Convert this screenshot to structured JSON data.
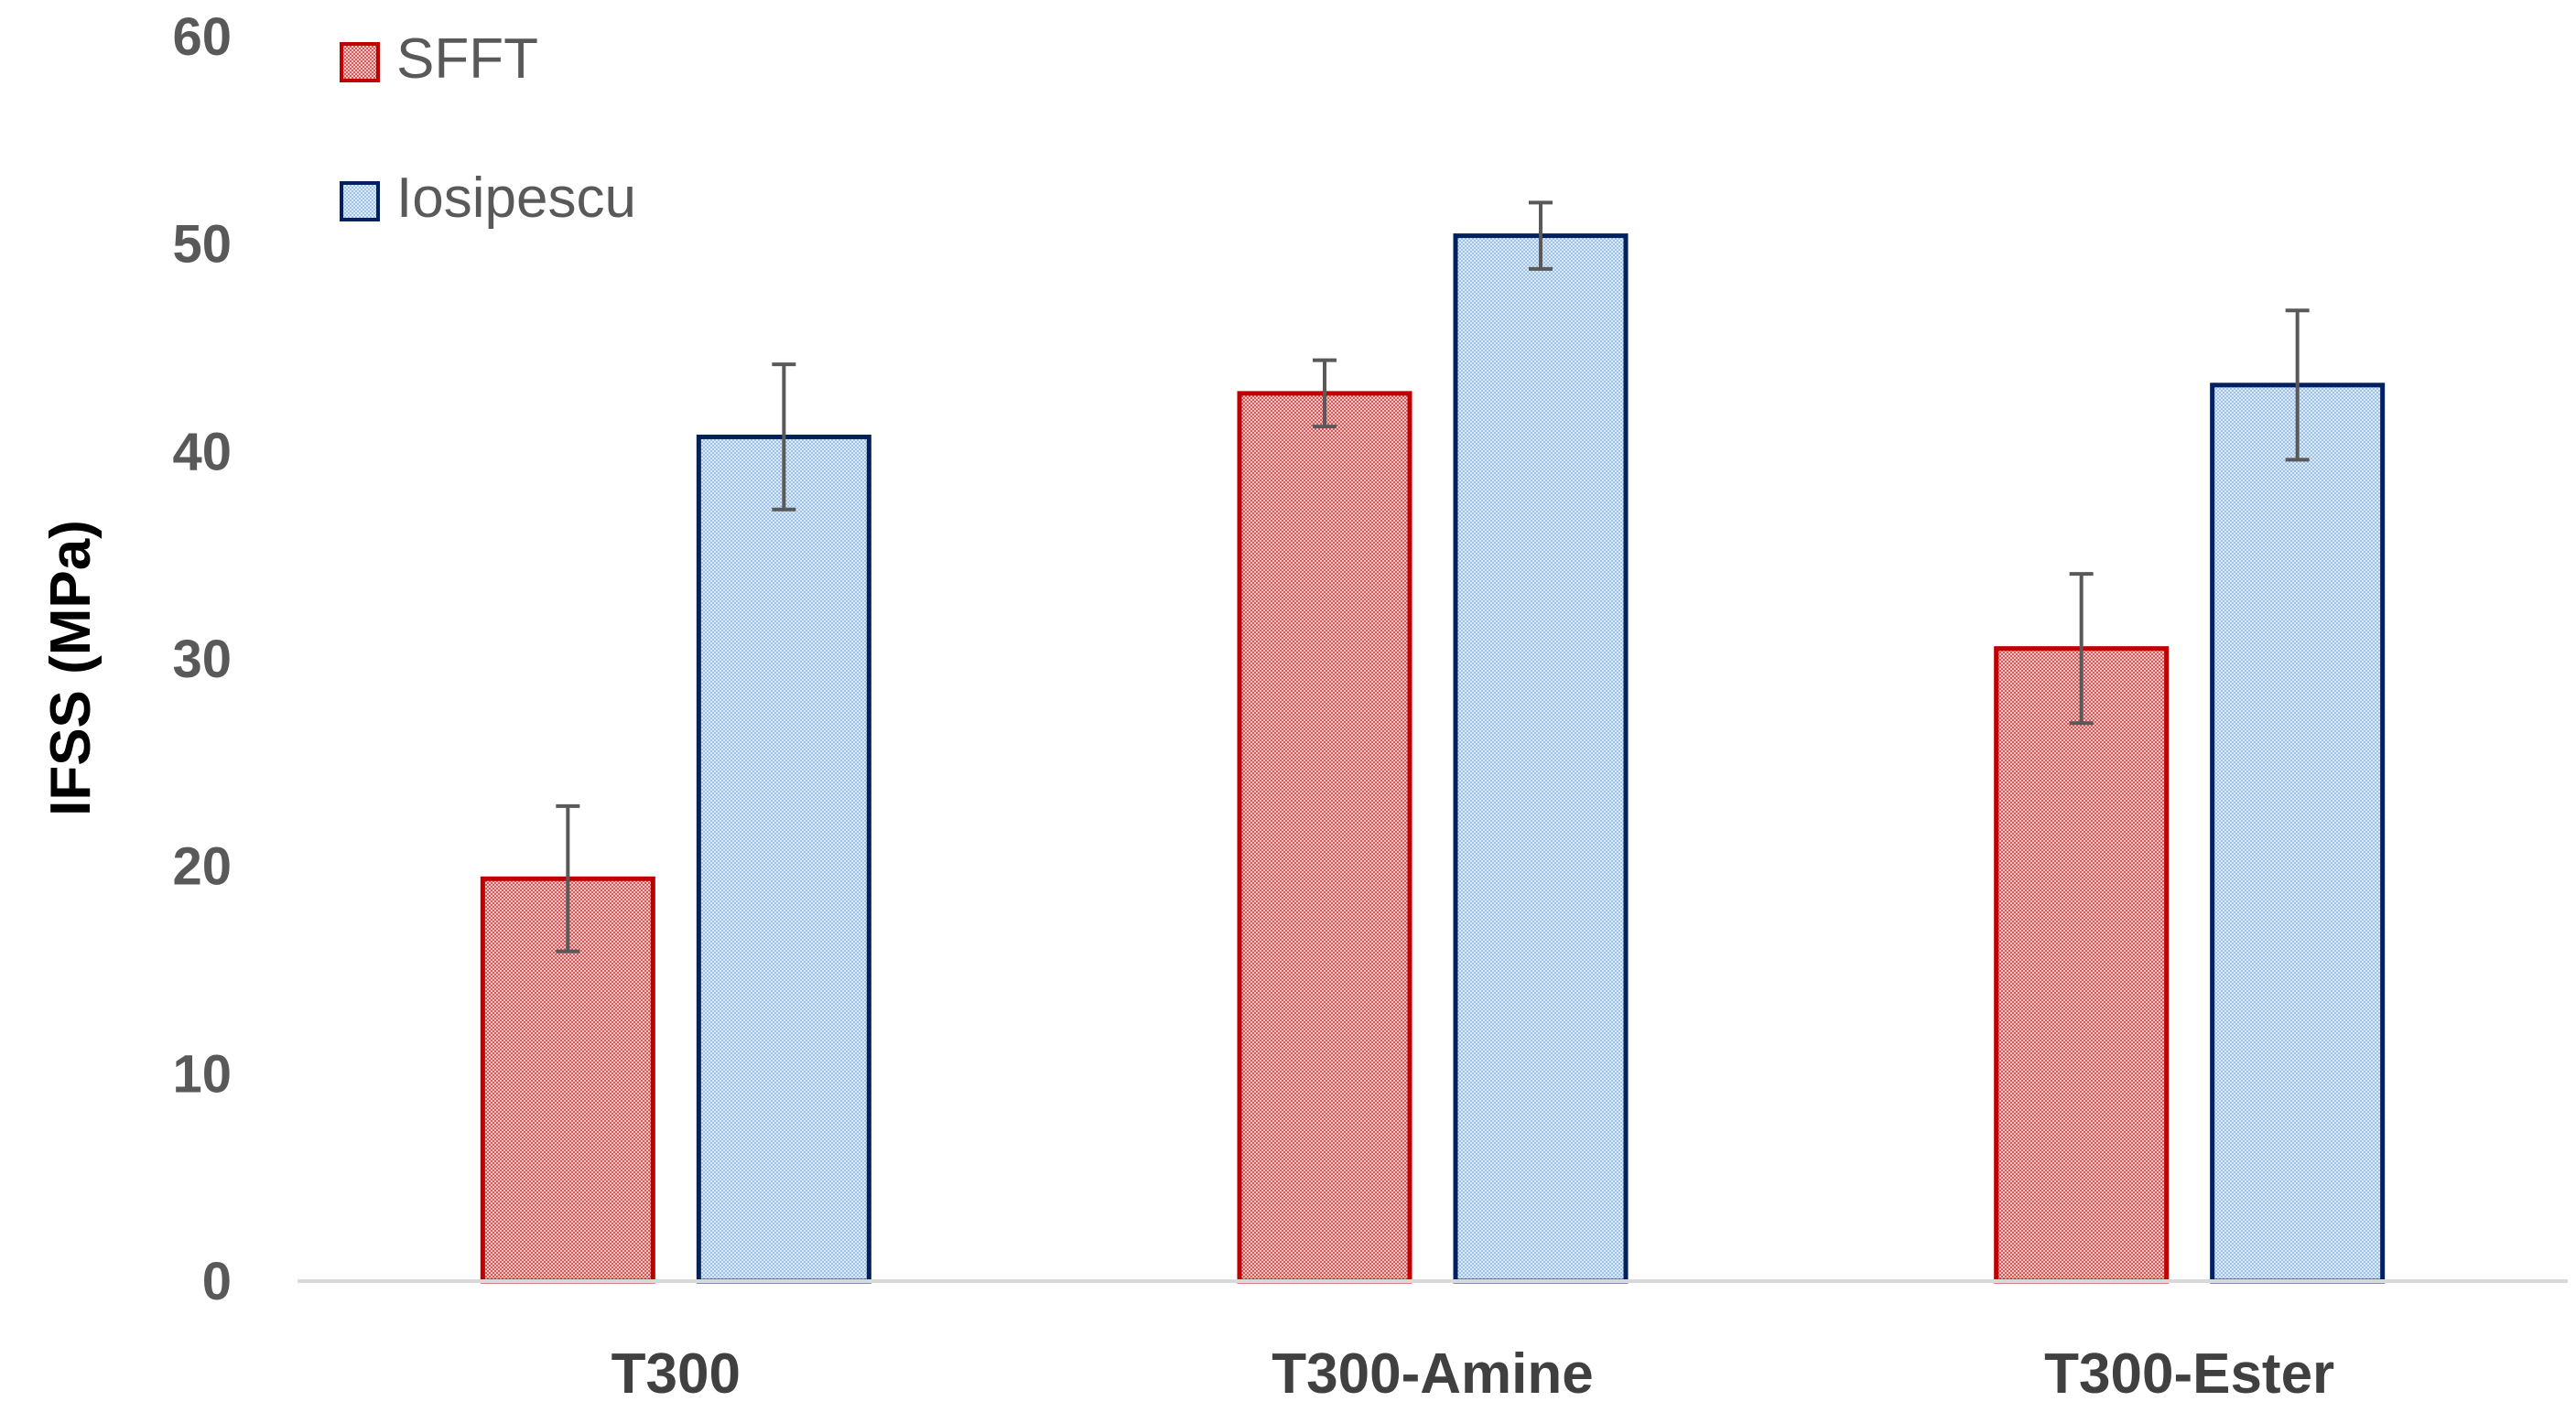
{
  "chart_data": {
    "type": "bar",
    "title": "",
    "xlabel": "",
    "ylabel": "IFSS (MPa)",
    "ylim": [
      0,
      60
    ],
    "yticks": [
      0,
      10,
      20,
      30,
      40,
      50,
      60
    ],
    "grid": false,
    "legend_position": "top-left",
    "categories": [
      "T300",
      "T300-Amine",
      "T300-Ester"
    ],
    "series": [
      {
        "name": "SFFT",
        "values": [
          19.4,
          42.8,
          30.5
        ],
        "errors": [
          3.5,
          1.6,
          3.6
        ],
        "fill": "#e8a0a0",
        "stroke": "#c00000"
      },
      {
        "name": "Iosipescu",
        "values": [
          40.7,
          50.4,
          43.2
        ],
        "errors": [
          3.5,
          1.6,
          3.6
        ],
        "fill": "#b7d3f0",
        "stroke": "#002060"
      }
    ]
  }
}
